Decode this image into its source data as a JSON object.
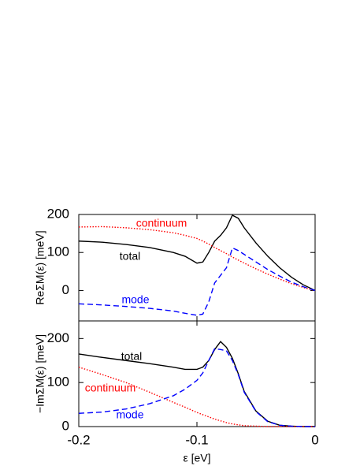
{
  "chart_data": [
    {
      "type": "line",
      "ylabel": "ReΣM(ε) [meV]",
      "x": [
        -0.2,
        -0.18,
        -0.16,
        -0.14,
        -0.12,
        -0.11,
        -0.1,
        -0.095,
        -0.09,
        -0.085,
        -0.08,
        -0.075,
        -0.07,
        -0.065,
        -0.06,
        -0.05,
        -0.04,
        -0.03,
        -0.02,
        -0.01,
        0
      ],
      "xlim": [
        -0.2,
        0
      ],
      "xticks": [
        -0.2,
        -0.1,
        0
      ],
      "ylim": [
        -80,
        200
      ],
      "yticks": [
        0,
        100,
        200
      ],
      "series": [
        {
          "name": "total",
          "color": "#000000",
          "dash": "solid",
          "values": [
            130,
            127,
            121,
            113,
            100,
            90,
            72,
            75,
            100,
            130,
            145,
            165,
            198,
            190,
            165,
            125,
            90,
            60,
            35,
            15,
            0
          ]
        },
        {
          "name": "continuum",
          "color": "#ff0000",
          "dash": "dotted",
          "values": [
            167,
            168,
            165,
            160,
            152,
            145,
            137,
            130,
            122,
            113,
            105,
            97,
            88,
            80,
            72,
            57,
            43,
            30,
            18,
            8,
            0
          ]
        },
        {
          "name": "mode",
          "color": "#0000ff",
          "dash": "dashed",
          "values": [
            -35,
            -38,
            -42,
            -47,
            -54,
            -60,
            -65,
            -62,
            -30,
            20,
            40,
            60,
            112,
            105,
            95,
            75,
            55,
            38,
            22,
            10,
            0
          ]
        }
      ]
    },
    {
      "type": "line",
      "ylabel": "−ImΣM(ε) [meV]",
      "xlabel": "ε [eV]",
      "x": [
        -0.2,
        -0.18,
        -0.16,
        -0.14,
        -0.12,
        -0.11,
        -0.1,
        -0.095,
        -0.09,
        -0.085,
        -0.08,
        -0.075,
        -0.07,
        -0.065,
        -0.06,
        -0.05,
        -0.04,
        -0.03,
        -0.02,
        -0.01,
        0
      ],
      "xlim": [
        -0.2,
        0
      ],
      "xticks": [
        -0.2,
        -0.1,
        0
      ],
      "ylim": [
        0,
        240
      ],
      "yticks": [
        0,
        100,
        200
      ],
      "series": [
        {
          "name": "total",
          "color": "#000000",
          "dash": "solid",
          "values": [
            165,
            157,
            150,
            143,
            135,
            130,
            130,
            135,
            150,
            175,
            193,
            180,
            155,
            120,
            80,
            35,
            12,
            3,
            1,
            0,
            0
          ]
        },
        {
          "name": "continuum",
          "color": "#ff0000",
          "dash": "dotted",
          "values": [
            135,
            118,
            100,
            78,
            55,
            44,
            32,
            27,
            22,
            17,
            13,
            9,
            6,
            4,
            2,
            1,
            0,
            0,
            0,
            0,
            0
          ]
        },
        {
          "name": "mode",
          "color": "#0000ff",
          "dash": "dashed",
          "values": [
            30,
            33,
            40,
            52,
            70,
            85,
            105,
            122,
            150,
            177,
            175,
            172,
            150,
            118,
            78,
            34,
            11,
            3,
            1,
            0,
            0
          ]
        }
      ]
    }
  ]
}
